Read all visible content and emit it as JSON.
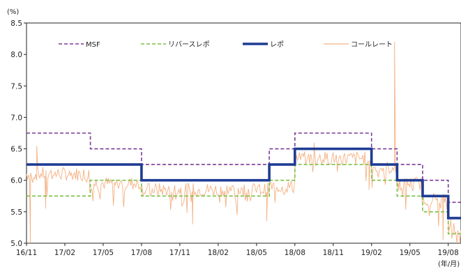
{
  "chart_data": {
    "type": "line",
    "y_unit": "(%)",
    "x_unit": "(年/月)",
    "ylim": [
      5.0,
      8.5
    ],
    "yticks": [
      "8.5",
      "8.0",
      "7.5",
      "7.0",
      "6.5",
      "6.0",
      "5.5",
      "5.0"
    ],
    "ytick_values": [
      8.5,
      8.0,
      7.5,
      7.0,
      6.5,
      6.0,
      5.5,
      5.0
    ],
    "xticks": [
      "16/11",
      "17/02",
      "17/05",
      "17/08",
      "17/11",
      "18/02",
      "18/05",
      "18/08",
      "18/11",
      "19/02",
      "19/05",
      "19/08"
    ],
    "xlim_months": [
      0,
      34
    ],
    "legend_position": "top",
    "grid": false,
    "series": [
      {
        "name": "MSF",
        "style": "dashed",
        "color": "#7b3a96",
        "points": [
          [
            0,
            6.75
          ],
          [
            5,
            6.75
          ],
          [
            5,
            6.5
          ],
          [
            9,
            6.5
          ],
          [
            9,
            6.25
          ],
          [
            19,
            6.25
          ],
          [
            19,
            6.5
          ],
          [
            21,
            6.5
          ],
          [
            21,
            6.75
          ],
          [
            27,
            6.75
          ],
          [
            27,
            6.5
          ],
          [
            29,
            6.5
          ],
          [
            29,
            6.25
          ],
          [
            31,
            6.25
          ],
          [
            31,
            6.0
          ],
          [
            33,
            6.0
          ],
          [
            33,
            5.65
          ],
          [
            34,
            5.65
          ]
        ]
      },
      {
        "name": "リバースレポ",
        "style": "dashed",
        "color": "#7ac143",
        "points": [
          [
            0,
            5.75
          ],
          [
            5,
            5.75
          ],
          [
            5,
            6.0
          ],
          [
            9,
            6.0
          ],
          [
            9,
            5.75
          ],
          [
            19,
            5.75
          ],
          [
            19,
            6.0
          ],
          [
            21,
            6.0
          ],
          [
            21,
            6.25
          ],
          [
            27,
            6.25
          ],
          [
            27,
            6.0
          ],
          [
            29,
            6.0
          ],
          [
            29,
            5.75
          ],
          [
            31,
            5.75
          ],
          [
            31,
            5.5
          ],
          [
            33,
            5.5
          ],
          [
            33,
            5.15
          ],
          [
            34,
            5.15
          ]
        ]
      },
      {
        "name": "レポ",
        "style": "solid-thick",
        "color": "#1f3c93",
        "points": [
          [
            0,
            6.25
          ],
          [
            9,
            6.25
          ],
          [
            9,
            6.0
          ],
          [
            19,
            6.0
          ],
          [
            19,
            6.25
          ],
          [
            21,
            6.25
          ],
          [
            21,
            6.5
          ],
          [
            27,
            6.5
          ],
          [
            27,
            6.25
          ],
          [
            29,
            6.25
          ],
          [
            29,
            6.0
          ],
          [
            31,
            6.0
          ],
          [
            31,
            5.75
          ],
          [
            33,
            5.75
          ],
          [
            33,
            5.4
          ],
          [
            34,
            5.4
          ]
        ]
      },
      {
        "name": "コールレート",
        "style": "thin",
        "color": "#f4b183",
        "base_points": [
          [
            0,
            6.1
          ],
          [
            5,
            5.95
          ],
          [
            9,
            5.85
          ],
          [
            19,
            5.9
          ],
          [
            21,
            6.35
          ],
          [
            27,
            6.2
          ],
          [
            29,
            5.95
          ],
          [
            31,
            5.7
          ],
          [
            33,
            5.25
          ],
          [
            34,
            5.25
          ]
        ],
        "spikes": [
          [
            0.3,
            5.0
          ],
          [
            0.8,
            6.55
          ],
          [
            1.5,
            5.55
          ],
          [
            13,
            5.3
          ],
          [
            18.8,
            5.35
          ],
          [
            22.5,
            6.6
          ],
          [
            26.8,
            5.85
          ],
          [
            28.8,
            8.2
          ],
          [
            29.1,
            5.95
          ],
          [
            32.6,
            5.05
          ],
          [
            33.2,
            5.4
          ]
        ]
      }
    ]
  }
}
